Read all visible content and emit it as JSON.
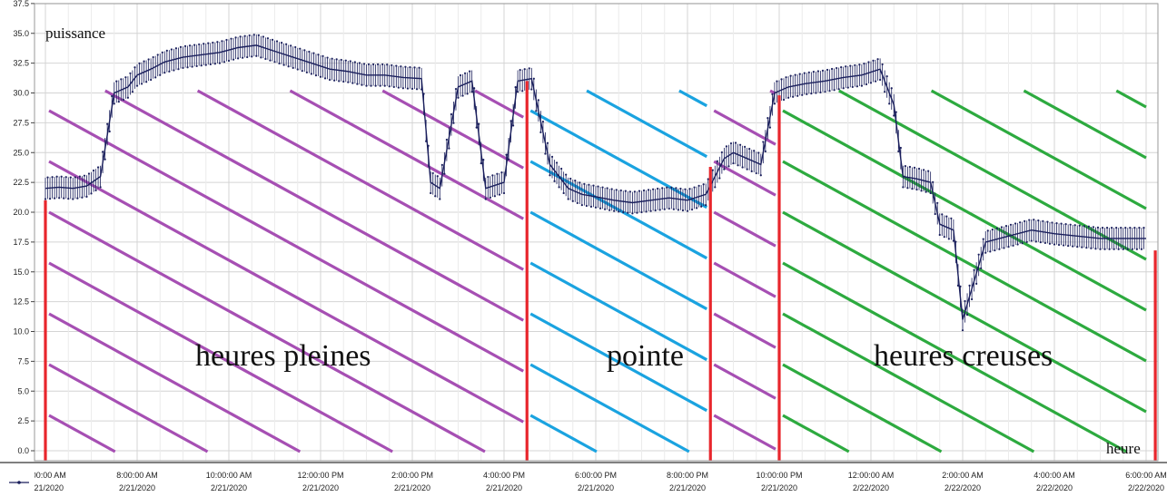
{
  "chart_data": {
    "type": "line",
    "ylabel": "puissance",
    "xlabel": "heure",
    "ylim": [
      0,
      37.5
    ],
    "xlim_hours": [
      0,
      30
    ],
    "y_ticks": [
      "0.0",
      "2.5",
      "5.0",
      "7.5",
      "10.0",
      "12.5",
      "15.0",
      "17.5",
      "20.0",
      "22.5",
      "25.0",
      "27.5",
      "30.0",
      "32.5",
      "35.0",
      "37.5"
    ],
    "x_ticks": [
      {
        "time": "6:00:00 AM",
        "date": "2/21/2020",
        "h": 0
      },
      {
        "time": "8:00:00 AM",
        "date": "2/21/2020",
        "h": 2
      },
      {
        "time": "10:00:00 AM",
        "date": "2/21/2020",
        "h": 4
      },
      {
        "time": "12:00:00 PM",
        "date": "2/21/2020",
        "h": 6
      },
      {
        "time": "2:00:00 PM",
        "date": "2/21/2020",
        "h": 8
      },
      {
        "time": "4:00:00 PM",
        "date": "2/21/2020",
        "h": 10
      },
      {
        "time": "6:00:00 PM",
        "date": "2/21/2020",
        "h": 12
      },
      {
        "time": "8:00:00 PM",
        "date": "2/21/2020",
        "h": 14
      },
      {
        "time": "10:00:00 PM",
        "date": "2/21/2020",
        "h": 16
      },
      {
        "time": "12:00:00 AM",
        "date": "2/22/2020",
        "h": 18
      },
      {
        "time": "2:00:00 AM",
        "date": "2/22/2020",
        "h": 20
      },
      {
        "time": "4:00:00 AM",
        "date": "2/22/2020",
        "h": 22
      },
      {
        "time": "6:00:00 AM",
        "date": "2/22/2020",
        "h": 24
      }
    ],
    "series": [
      {
        "x_hours": [
          0,
          0.3,
          0.6,
          0.9,
          1.2,
          1.5,
          1.8,
          2.0,
          2.3,
          2.6,
          3.0,
          3.4,
          3.8,
          4.2,
          4.6,
          5.0,
          5.4,
          5.8,
          6.2,
          6.6,
          7.0,
          7.4,
          7.8,
          8.2,
          8.4,
          8.6,
          9.0,
          9.3,
          9.6,
          10.0,
          10.3,
          10.6,
          11.0,
          11.4,
          11.7,
          12.0,
          12.4,
          12.8,
          13.2,
          13.6,
          14.0,
          14.4,
          14.8,
          15.0,
          15.3,
          15.6,
          15.9,
          16.2,
          16.6,
          17.0,
          17.4,
          17.8,
          18.2,
          18.5,
          18.7,
          19.0,
          19.3,
          19.5,
          19.8,
          20.0,
          20.5,
          21.0,
          21.5,
          22.0,
          22.5,
          23.0,
          23.5,
          24.0
        ],
        "y": [
          22.0,
          22.1,
          22.0,
          22.2,
          23.0,
          30.0,
          30.5,
          31.5,
          32.0,
          32.6,
          33.0,
          33.2,
          33.4,
          33.8,
          34.0,
          33.5,
          33.0,
          32.5,
          32.0,
          31.8,
          31.5,
          31.5,
          31.3,
          31.2,
          22.5,
          22.0,
          30.5,
          31.0,
          22.0,
          22.5,
          31.0,
          31.2,
          24.0,
          22.0,
          21.5,
          21.3,
          21.0,
          20.8,
          21.0,
          21.2,
          21.0,
          21.5,
          24.5,
          25.0,
          24.5,
          24.0,
          30.0,
          30.5,
          30.8,
          31.0,
          31.3,
          31.5,
          32.0,
          29.0,
          23.0,
          22.8,
          22.5,
          19.0,
          18.5,
          11.0,
          17.5,
          18.0,
          18.5,
          18.2,
          18.0,
          17.8,
          17.8,
          17.8
        ]
      }
    ],
    "annotations": [
      {
        "text": "heures pleines",
        "from_h": 0,
        "to_h": 10.5
      },
      {
        "text": "pointe",
        "from_h": 10.5,
        "to_h": 14.5
      },
      {
        "text": "heures creuses",
        "from_h": 16,
        "to_h": 24
      }
    ],
    "colors": {
      "series": "#1a1f5c",
      "boundary": "#e8262c",
      "hatch_pleines": "#a64fb3",
      "hatch_pointe": "#1aa3e0",
      "hatch_creuses": "#2daa3f",
      "grid": "#d4d4d4",
      "axis": "#000000"
    },
    "period_boundaries_h": [
      0,
      10.5,
      14.5,
      16,
      24
    ]
  }
}
